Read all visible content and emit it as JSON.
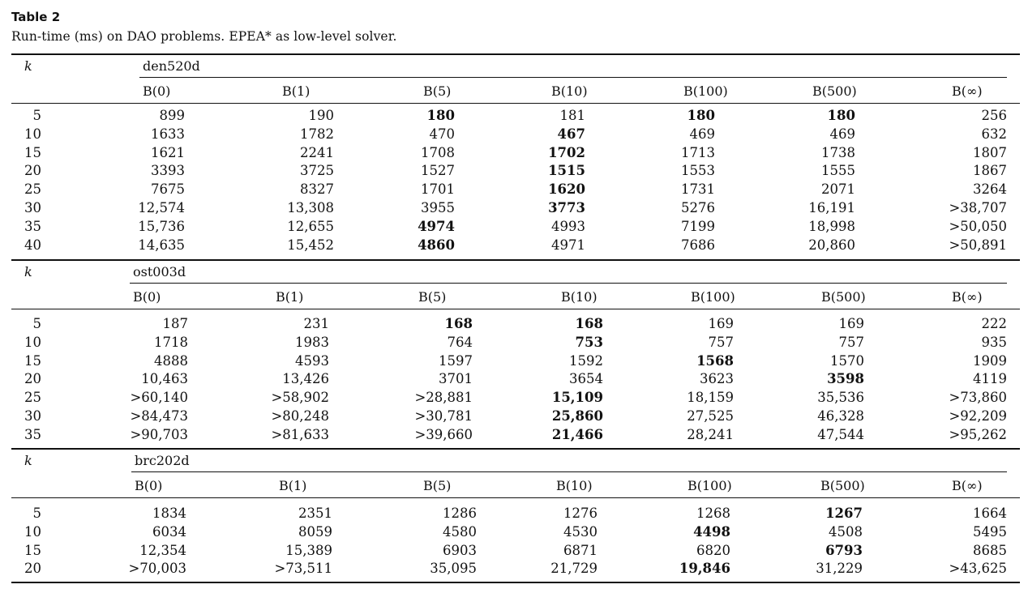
{
  "table_label": "Table 2",
  "caption": "Run-time (ms) on DAO problems. EPEA* as low-level solver.",
  "k_header": "k",
  "columns": [
    "B(0)",
    "B(1)",
    "B(5)",
    "B(10)",
    "B(100)",
    "B(500)",
    "B(∞)"
  ],
  "sections": [
    {
      "map": "den520d",
      "rows": [
        {
          "k": "5",
          "values": [
            "899",
            "190",
            "180",
            "181",
            "180",
            "180",
            "256"
          ],
          "bold": [
            2,
            4,
            5
          ]
        },
        {
          "k": "10",
          "values": [
            "1633",
            "1782",
            "470",
            "467",
            "469",
            "469",
            "632"
          ],
          "bold": [
            3
          ]
        },
        {
          "k": "15",
          "values": [
            "1621",
            "2241",
            "1708",
            "1702",
            "1713",
            "1738",
            "1807"
          ],
          "bold": [
            3
          ]
        },
        {
          "k": "20",
          "values": [
            "3393",
            "3725",
            "1527",
            "1515",
            "1553",
            "1555",
            "1867"
          ],
          "bold": [
            3
          ]
        },
        {
          "k": "25",
          "values": [
            "7675",
            "8327",
            "1701",
            "1620",
            "1731",
            "2071",
            "3264"
          ],
          "bold": [
            3
          ]
        },
        {
          "k": "30",
          "values": [
            "12,574",
            "13,308",
            "3955",
            "3773",
            "5276",
            "16,191",
            ">38,707"
          ],
          "bold": [
            3
          ]
        },
        {
          "k": "35",
          "values": [
            "15,736",
            "12,655",
            "4974",
            "4993",
            "7199",
            "18,998",
            ">50,050"
          ],
          "bold": [
            2
          ]
        },
        {
          "k": "40",
          "values": [
            "14,635",
            "15,452",
            "4860",
            "4971",
            "7686",
            "20,860",
            ">50,891"
          ],
          "bold": [
            2
          ]
        }
      ]
    },
    {
      "map": "ost003d",
      "rows": [
        {
          "k": "5",
          "values": [
            "187",
            "231",
            "168",
            "168",
            "169",
            "169",
            "222"
          ],
          "bold": [
            2,
            3
          ]
        },
        {
          "k": "10",
          "values": [
            "1718",
            "1983",
            "764",
            "753",
            "757",
            "757",
            "935"
          ],
          "bold": [
            3
          ]
        },
        {
          "k": "15",
          "values": [
            "4888",
            "4593",
            "1597",
            "1592",
            "1568",
            "1570",
            "1909"
          ],
          "bold": [
            4
          ]
        },
        {
          "k": "20",
          "values": [
            "10,463",
            "13,426",
            "3701",
            "3654",
            "3623",
            "3598",
            "4119"
          ],
          "bold": [
            5
          ]
        },
        {
          "k": "25",
          "values": [
            ">60,140",
            ">58,902",
            ">28,881",
            "15,109",
            "18,159",
            "35,536",
            ">73,860"
          ],
          "bold": [
            3
          ]
        },
        {
          "k": "30",
          "values": [
            ">84,473",
            ">80,248",
            ">30,781",
            "25,860",
            "27,525",
            "46,328",
            ">92,209"
          ],
          "bold": [
            3
          ]
        },
        {
          "k": "35",
          "values": [
            ">90,703",
            ">81,633",
            ">39,660",
            "21,466",
            "28,241",
            "47,544",
            ">95,262"
          ],
          "bold": [
            3
          ]
        }
      ]
    },
    {
      "map": "brc202d",
      "rows": [
        {
          "k": "5",
          "values": [
            "1834",
            "2351",
            "1286",
            "1276",
            "1268",
            "1267",
            "1664"
          ],
          "bold": [
            5
          ]
        },
        {
          "k": "10",
          "values": [
            "6034",
            "8059",
            "4580",
            "4530",
            "4498",
            "4508",
            "5495"
          ],
          "bold": [
            4
          ]
        },
        {
          "k": "15",
          "values": [
            "12,354",
            "15,389",
            "6903",
            "6871",
            "6820",
            "6793",
            "8685"
          ],
          "bold": [
            5
          ]
        },
        {
          "k": "20",
          "values": [
            ">70,003",
            ">73,511",
            "35,095",
            "21,729",
            "19,846",
            "31,229",
            ">43,625"
          ],
          "bold": [
            4
          ]
        }
      ]
    }
  ]
}
